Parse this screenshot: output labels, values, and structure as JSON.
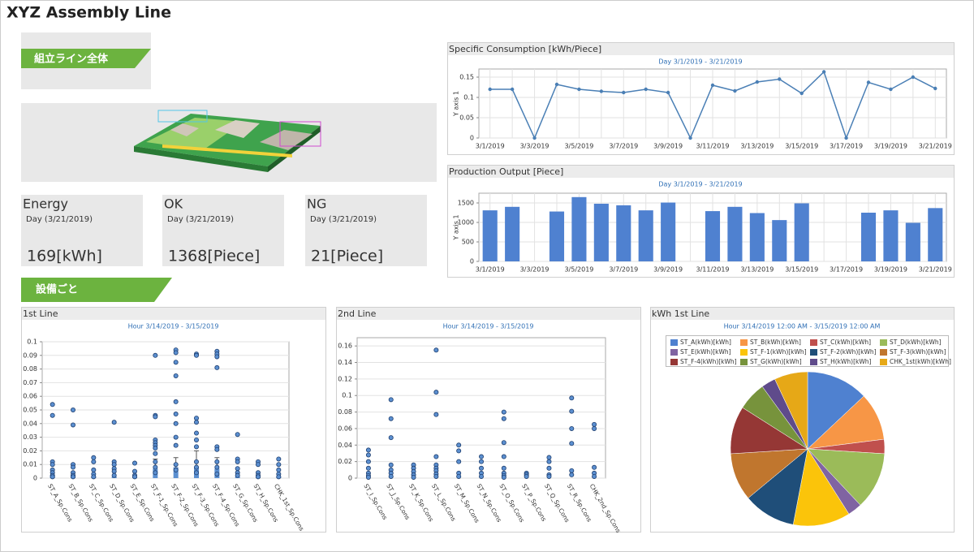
{
  "title": "XYZ Assembly Line",
  "banners": [
    "組立ライン全体",
    "設備ごと"
  ],
  "kpis": [
    {
      "label": "Energy",
      "period": "Day (3/21/2019)",
      "value": "169[kWh]"
    },
    {
      "label": "OK",
      "period": "Day (3/21/2019)",
      "value": "1368[Piece]"
    },
    {
      "label": "NG",
      "period": "Day (3/21/2019)",
      "value": "21[Piece]"
    }
  ],
  "chart_data": [
    {
      "type": "line",
      "title": "Specific Consumption [kWh/Piece]",
      "subtitle": "Day 3/1/2019 - 3/21/2019",
      "ylabel": "Y axis 1",
      "categories": [
        "3/1/2019",
        null,
        "3/3/2019",
        null,
        "3/5/2019",
        null,
        "3/7/2019",
        null,
        "3/9/2019",
        null,
        "3/11/2019",
        null,
        "3/13/2019",
        null,
        "3/15/2019",
        null,
        "3/17/2019",
        null,
        "3/19/2019",
        null,
        "3/21/2019"
      ],
      "values": [
        0.12,
        0.12,
        0,
        0.132,
        0.12,
        0.115,
        0.112,
        0.12,
        0.112,
        0,
        0.13,
        0.116,
        0.138,
        0.145,
        0.11,
        0.163,
        0,
        0.137,
        0.12,
        0.15,
        0.122
      ],
      "color": "#4a7fb5",
      "ylim": [
        0,
        0.17
      ],
      "yticks": [
        0,
        0.05,
        0.1,
        0.15
      ],
      "grid": true
    },
    {
      "type": "bar",
      "title": "Production Output [Piece]",
      "subtitle": "Day 3/1/2019 - 3/21/2019",
      "ylabel": "Y axis 1",
      "categories": [
        "3/1/2019",
        null,
        "3/3/2019",
        null,
        "3/5/2019",
        null,
        "3/7/2019",
        null,
        "3/9/2019",
        null,
        "3/11/2019",
        null,
        "3/13/2019",
        null,
        "3/15/2019",
        null,
        "3/17/2019",
        null,
        "3/19/2019",
        null,
        "3/21/2019"
      ],
      "values": [
        1310,
        1400,
        0,
        1280,
        1650,
        1480,
        1440,
        1310,
        1510,
        0,
        1290,
        1400,
        1240,
        1060,
        1490,
        0,
        0,
        1250,
        1310,
        990,
        1368
      ],
      "color": "#4f81d0",
      "ylim": [
        0,
        1750
      ],
      "yticks": [
        0,
        500,
        1000,
        1500
      ],
      "grid": true
    },
    {
      "type": "strip",
      "title": "1st Line",
      "subtitle": "Hour 3/14/2019 - 3/15/2019",
      "categories": [
        "ST_A_Sp.Cons",
        "ST_B_Sp.Cons",
        "ST_C_Sp.Cons",
        "ST_D_Sp.Cons",
        "ST_E_Sp.Cons",
        "ST_F-1_Sp.Cons",
        "ST_F-2_Sp.Cons",
        "ST_F-3_Sp.Cons",
        "ST_F-4_Sp.Cons",
        "ST_G_Sp.Cons",
        "ST_H_Sp.Cons",
        "CHK_1st_Sp.Cons"
      ],
      "points": [
        [
          0.054,
          0.046,
          0.012,
          0.01,
          0.006,
          0.004,
          0.002,
          0.001
        ],
        [
          0.05,
          0.039,
          0.01,
          0.008,
          0.004,
          0.002,
          0.001
        ],
        [
          0.015,
          0.012,
          0.006,
          0.003,
          0.001
        ],
        [
          0.041,
          0.012,
          0.01,
          0.007,
          0.005,
          0.002
        ],
        [
          0.011,
          0.005,
          0.002,
          0.001
        ],
        [
          0.09,
          0.046,
          0.045,
          0.028,
          0.026,
          0.024,
          0.022,
          0.018,
          0.012,
          0.008,
          0.004
        ],
        [
          0.094,
          0.092,
          0.085,
          0.075,
          0.056,
          0.047,
          0.04,
          0.03,
          0.024,
          0.01,
          0.006
        ],
        [
          0.091,
          0.09,
          0.044,
          0.041,
          0.033,
          0.028,
          0.023,
          0.012,
          0.008,
          0.004
        ],
        [
          0.093,
          0.091,
          0.089,
          0.081,
          0.023,
          0.021,
          0.012,
          0.008,
          0.003
        ],
        [
          0.032,
          0.014,
          0.012,
          0.007,
          0.004,
          0.002
        ],
        [
          0.012,
          0.01,
          0.004,
          0.002,
          0.001
        ],
        [
          0.014,
          0.01,
          0.006,
          0.003,
          0.001
        ]
      ],
      "means": [
        0.002,
        0.002,
        0.001,
        0.001,
        0.001,
        0.007,
        0.008,
        0.008,
        0.007,
        0.001,
        0.001,
        0.001
      ],
      "errors": [
        0,
        0,
        0,
        0,
        0,
        0.007,
        0.007,
        0.012,
        0.008,
        0,
        0,
        0
      ],
      "color": "#5b8fd0",
      "ylim": [
        0,
        0.1
      ],
      "yticks": [
        0,
        0.01,
        0.02,
        0.03,
        0.04,
        0.05,
        0.06,
        0.07,
        0.08,
        0.09,
        0.1
      ],
      "grid": true
    },
    {
      "type": "strip",
      "title": "2nd Line",
      "subtitle": "Hour 3/14/2019 - 3/15/2019",
      "categories": [
        "ST_I_Sp.Cons",
        "ST_J_Sp.Cons",
        "ST_K_Sp.Cons",
        "ST_L_Sp.Cons",
        "ST_M_Sp.Cons",
        "ST_N_Sp.Cons",
        "ST_O_Sp.Cons",
        "ST_P_Sp.Cons",
        "ST_Q_Sp.Cons",
        "ST_R_Sp.Cons",
        "CHK_2nd_Sp.Cons"
      ],
      "points": [
        [
          0.034,
          0.028,
          0.02,
          0.012,
          0.006,
          0.003,
          0.001
        ],
        [
          0.095,
          0.072,
          0.049,
          0.016,
          0.01,
          0.006,
          0.002
        ],
        [
          0.016,
          0.012,
          0.008,
          0.004,
          0.001
        ],
        [
          0.155,
          0.104,
          0.077,
          0.026,
          0.016,
          0.012,
          0.009,
          0.005,
          0.002
        ],
        [
          0.04,
          0.033,
          0.02,
          0.006,
          0.002
        ],
        [
          0.026,
          0.02,
          0.012,
          0.006,
          0.002
        ],
        [
          0.08,
          0.072,
          0.043,
          0.026,
          0.012,
          0.006,
          0.003,
          0.001
        ],
        [
          0.006,
          0.004,
          0.002
        ],
        [
          0.025,
          0.02,
          0.012,
          0.004,
          0.002
        ],
        [
          0.097,
          0.081,
          0.06,
          0.042,
          0.009,
          0.004
        ],
        [
          0.065,
          0.06,
          0.013,
          0.006,
          0.002
        ]
      ],
      "color": "#5b8fd0",
      "ylim": [
        0,
        0.17
      ],
      "yticks": [
        0,
        0.02,
        0.04,
        0.06,
        0.08,
        0.1,
        0.12,
        0.14,
        0.16
      ],
      "grid": true
    },
    {
      "type": "pie",
      "title": "kWh 1st Line",
      "subtitle": "Hour 3/14/2019 12:00 AM - 3/15/2019 12:00 AM",
      "categories": [
        "ST_A(kWh)[kWh]",
        "ST_B(kWh)[kWh]",
        "ST_C(kWh)[kWh]",
        "ST_D(kWh)[kWh]",
        "ST_E(kWh)[kWh]",
        "ST_F-1(kWh)[kWh]",
        "ST_F-2(kWh)[kWh]",
        "ST_F-3(kWh)[kWh]",
        "ST_F-4(kWh)[kWh]",
        "ST_G(kWh)[kWh]",
        "ST_H(kWh)[kWh]",
        "CHK_1st(kWh)[kWh]"
      ],
      "values": [
        13,
        10,
        3,
        12,
        3,
        12,
        11,
        10,
        10,
        6,
        3,
        7
      ],
      "colors": [
        "#4f81d0",
        "#f79646",
        "#c0504d",
        "#9bbb59",
        "#8064a2",
        "#fbc40a",
        "#1f4e79",
        "#c0762e",
        "#953735",
        "#77933c",
        "#5f4b8b",
        "#e6a817"
      ]
    }
  ]
}
